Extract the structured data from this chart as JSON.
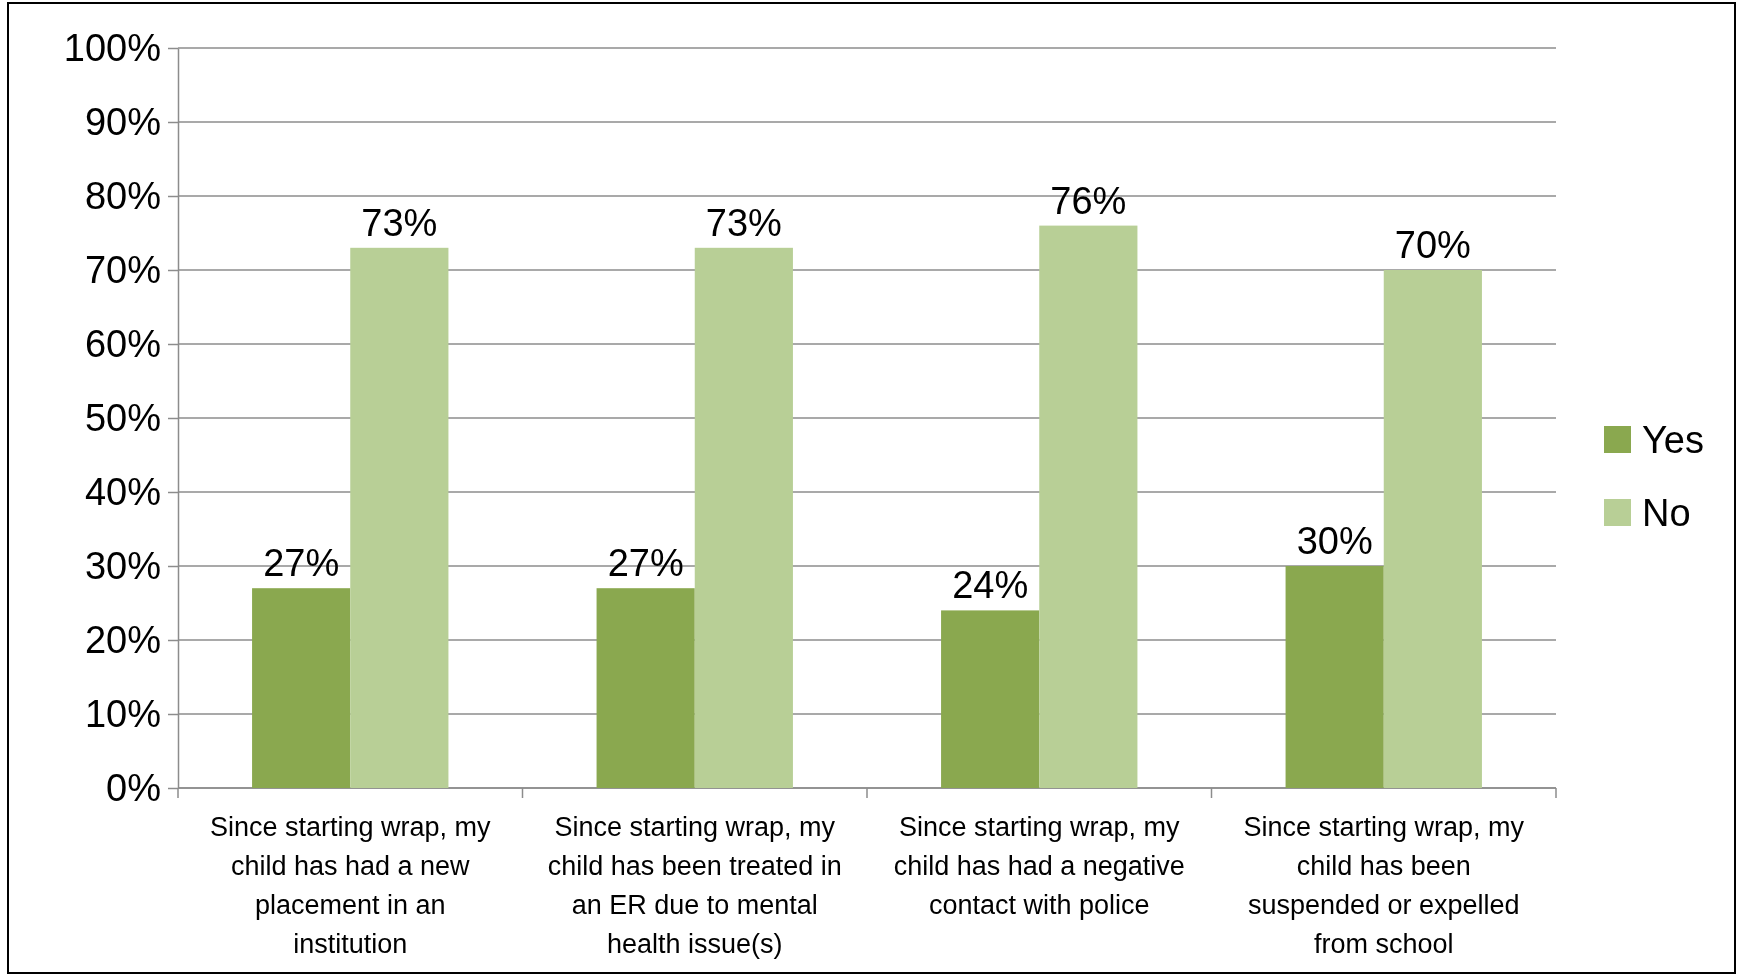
{
  "chart_data": {
    "type": "bar",
    "categories": [
      "Since starting wrap, my child has had a new placement in an institution",
      "Since starting wrap, my child has been treated in an ER due to mental health issue(s)",
      "Since starting wrap, my child has had a negative contact with police",
      "Since starting wrap, my child has been suspended or expelled from school"
    ],
    "series": [
      {
        "name": "Yes",
        "color": "#8aa84f",
        "values": [
          27,
          27,
          24,
          30
        ],
        "value_labels": [
          "27%",
          "27%",
          "24%",
          "30%"
        ]
      },
      {
        "name": "No",
        "color": "#b8cf96",
        "values": [
          73,
          73,
          76,
          70
        ],
        "value_labels": [
          "73%",
          "73%",
          "76%",
          "70%"
        ]
      }
    ],
    "ylim": [
      0,
      100
    ],
    "yticks": [
      {
        "value": 0,
        "label": "0%"
      },
      {
        "value": 10,
        "label": "10%"
      },
      {
        "value": 20,
        "label": "20%"
      },
      {
        "value": 30,
        "label": "30%"
      },
      {
        "value": 40,
        "label": "40%"
      },
      {
        "value": 50,
        "label": "50%"
      },
      {
        "value": 60,
        "label": "60%"
      },
      {
        "value": 70,
        "label": "70%"
      },
      {
        "value": 80,
        "label": "80%"
      },
      {
        "value": 90,
        "label": "90%"
      },
      {
        "value": 100,
        "label": "100%"
      }
    ],
    "grid": "y",
    "legend": "right"
  }
}
